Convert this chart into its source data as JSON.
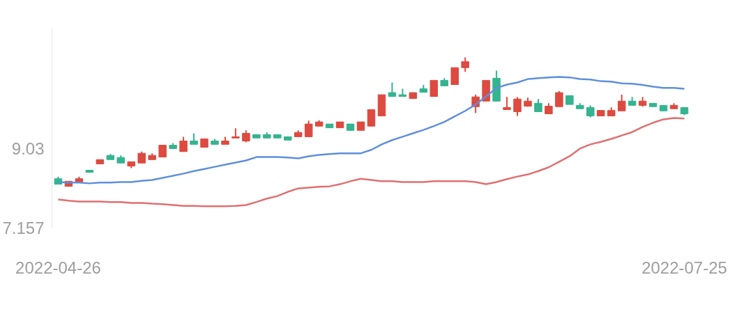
{
  "chart_data": {
    "type": "candlestick",
    "categories": [
      "2022-04-26",
      null,
      null,
      null,
      null,
      null,
      null,
      null,
      null,
      null,
      null,
      null,
      null,
      null,
      null,
      null,
      null,
      null,
      null,
      null,
      null,
      null,
      null,
      null,
      null,
      null,
      null,
      null,
      null,
      null,
      null,
      null,
      null,
      null,
      null,
      null,
      null,
      null,
      null,
      null,
      null,
      null,
      null,
      null,
      null,
      null,
      null,
      null,
      null,
      null,
      null,
      null,
      null,
      null,
      null,
      null,
      null,
      null,
      null,
      null,
      "2022-07-25"
    ],
    "ohlc": [
      [
        8.32,
        8.37,
        8.19,
        8.19
      ],
      [
        8.14,
        8.26,
        8.14,
        8.26
      ],
      [
        8.24,
        8.37,
        8.24,
        8.32
      ],
      [
        8.52,
        8.52,
        8.47,
        8.47
      ],
      [
        8.67,
        8.77,
        8.67,
        8.77
      ],
      [
        8.87,
        8.9,
        8.77,
        8.77
      ],
      [
        8.82,
        8.87,
        8.69,
        8.69
      ],
      [
        8.62,
        8.72,
        8.57,
        8.72
      ],
      [
        8.69,
        8.96,
        8.69,
        8.92
      ],
      [
        8.77,
        8.92,
        8.77,
        8.87
      ],
      [
        8.83,
        9.11,
        8.83,
        9.11
      ],
      [
        9.11,
        9.16,
        9.03,
        9.03
      ],
      [
        8.96,
        9.31,
        8.96,
        9.21
      ],
      [
        9.21,
        9.39,
        9.13,
        9.13
      ],
      [
        9.06,
        9.26,
        9.06,
        9.26
      ],
      [
        9.21,
        9.26,
        9.13,
        9.13
      ],
      [
        9.13,
        9.31,
        9.13,
        9.21
      ],
      [
        9.28,
        9.51,
        9.28,
        9.31
      ],
      [
        9.21,
        9.46,
        9.18,
        9.39
      ],
      [
        9.36,
        9.36,
        9.28,
        9.28
      ],
      [
        9.36,
        9.41,
        9.28,
        9.28
      ],
      [
        9.36,
        9.36,
        9.28,
        9.28
      ],
      [
        9.31,
        9.31,
        9.23,
        9.23
      ],
      [
        9.31,
        9.46,
        9.31,
        9.41
      ],
      [
        9.31,
        9.69,
        9.31,
        9.61
      ],
      [
        9.56,
        9.7,
        9.56,
        9.66
      ],
      [
        9.61,
        9.61,
        9.52,
        9.52
      ],
      [
        9.52,
        9.66,
        9.52,
        9.66
      ],
      [
        9.61,
        9.61,
        9.46,
        9.46
      ],
      [
        9.46,
        9.66,
        9.46,
        9.66
      ],
      [
        9.56,
        9.95,
        9.56,
        9.95
      ],
      [
        9.8,
        10.3,
        9.8,
        10.3
      ],
      [
        10.35,
        10.59,
        10.26,
        10.26
      ],
      [
        10.3,
        10.44,
        10.26,
        10.26
      ],
      [
        10.21,
        10.35,
        10.21,
        10.35
      ],
      [
        10.44,
        10.53,
        10.36,
        10.36
      ],
      [
        10.26,
        10.64,
        10.26,
        10.64
      ],
      [
        10.64,
        10.69,
        10.51,
        10.51
      ],
      [
        10.54,
        10.94,
        10.54,
        10.94
      ],
      [
        10.94,
        11.18,
        10.84,
        11.08
      ],
      [
        10.02,
        10.3,
        9.87,
        10.25
      ],
      [
        10.15,
        10.64,
        10.15,
        10.64
      ],
      [
        10.69,
        10.87,
        10.15,
        10.15
      ],
      [
        9.95,
        10.25,
        9.95,
        10.0
      ],
      [
        9.9,
        10.25,
        9.8,
        10.2
      ],
      [
        10.03,
        10.23,
        10.02,
        10.15
      ],
      [
        10.1,
        10.2,
        9.9,
        9.9
      ],
      [
        9.85,
        10.1,
        9.85,
        10.03
      ],
      [
        10.02,
        10.39,
        10.02,
        10.35
      ],
      [
        10.28,
        10.28,
        10.07,
        10.07
      ],
      [
        10.05,
        10.1,
        9.97,
        9.97
      ],
      [
        10.0,
        10.05,
        9.77,
        9.8
      ],
      [
        9.8,
        9.93,
        9.8,
        9.93
      ],
      [
        9.8,
        10.0,
        9.8,
        9.93
      ],
      [
        9.92,
        10.3,
        9.92,
        10.15
      ],
      [
        10.15,
        10.25,
        10.05,
        10.05
      ],
      [
        10.05,
        10.25,
        10.02,
        10.15
      ],
      [
        10.1,
        10.1,
        10.02,
        10.02
      ],
      [
        10.05,
        10.05,
        9.92,
        9.92
      ],
      [
        9.97,
        10.1,
        9.97,
        10.05
      ],
      [
        10.0,
        10.0,
        9.82,
        9.85
      ]
    ],
    "colors": [
      "#34b48f",
      "#dd4a3f",
      "#dd4a3f",
      "#34b48f",
      "#dd4a3f",
      "#34b48f",
      "#34b48f",
      "#dd4a3f",
      "#dd4a3f",
      "#dd4a3f",
      "#dd4a3f",
      "#34b48f",
      "#dd4a3f",
      "#34b48f",
      "#dd4a3f",
      "#34b48f",
      "#dd4a3f",
      "#dd4a3f",
      "#dd4a3f",
      "#34b48f",
      "#34b48f",
      "#34b48f",
      "#34b48f",
      "#dd4a3f",
      "#dd4a3f",
      "#dd4a3f",
      "#34b48f",
      "#dd4a3f",
      "#34b48f",
      "#dd4a3f",
      "#dd4a3f",
      "#dd4a3f",
      "#34b48f",
      "#34b48f",
      "#dd4a3f",
      "#34b48f",
      "#dd4a3f",
      "#34b48f",
      "#dd4a3f",
      "#dd4a3f",
      "#dd4a3f",
      "#dd4a3f",
      "#34b48f",
      "#dd4a3f",
      "#dd4a3f",
      "#dd4a3f",
      "#34b48f",
      "#dd4a3f",
      "#dd4a3f",
      "#34b48f",
      "#34b48f",
      "#34b48f",
      "#dd4a3f",
      "#dd4a3f",
      "#dd4a3f",
      "#34b48f",
      "#dd4a3f",
      "#34b48f",
      "#34b48f",
      "#dd4a3f",
      "#34b48f"
    ],
    "series": [
      {
        "type": "line",
        "color": "#5f8fdc",
        "values": [
          8.24,
          8.23,
          8.23,
          8.21,
          8.23,
          8.23,
          8.24,
          8.24,
          8.27,
          8.29,
          8.34,
          8.39,
          8.44,
          8.5,
          8.55,
          8.6,
          8.65,
          8.7,
          8.75,
          8.83,
          8.83,
          8.83,
          8.82,
          8.8,
          8.85,
          8.88,
          8.9,
          8.92,
          8.92,
          8.92,
          9.0,
          9.13,
          9.23,
          9.31,
          9.39,
          9.47,
          9.56,
          9.66,
          9.79,
          9.92,
          10.07,
          10.26,
          10.46,
          10.54,
          10.59,
          10.67,
          10.69,
          10.71,
          10.72,
          10.71,
          10.67,
          10.66,
          10.62,
          10.61,
          10.57,
          10.56,
          10.53,
          10.49,
          10.46,
          10.46,
          10.44
        ]
      },
      {
        "type": "line",
        "color": "#e06f70",
        "values": [
          7.83,
          7.8,
          7.78,
          7.78,
          7.78,
          7.77,
          7.77,
          7.75,
          7.75,
          7.73,
          7.72,
          7.7,
          7.68,
          7.68,
          7.67,
          7.67,
          7.67,
          7.68,
          7.7,
          7.77,
          7.85,
          7.91,
          8.01,
          8.09,
          8.11,
          8.13,
          8.14,
          8.19,
          8.26,
          8.32,
          8.29,
          8.26,
          8.26,
          8.24,
          8.24,
          8.24,
          8.26,
          8.26,
          8.26,
          8.26,
          8.24,
          8.19,
          8.24,
          8.31,
          8.37,
          8.42,
          8.5,
          8.59,
          8.72,
          8.85,
          9.03,
          9.13,
          9.19,
          9.26,
          9.34,
          9.42,
          9.54,
          9.64,
          9.72,
          9.75,
          9.74
        ]
      }
    ],
    "ylim": [
      7.157,
      11.87
    ],
    "yticks": [
      9.03,
      7.157
    ],
    "grid": false
  }
}
